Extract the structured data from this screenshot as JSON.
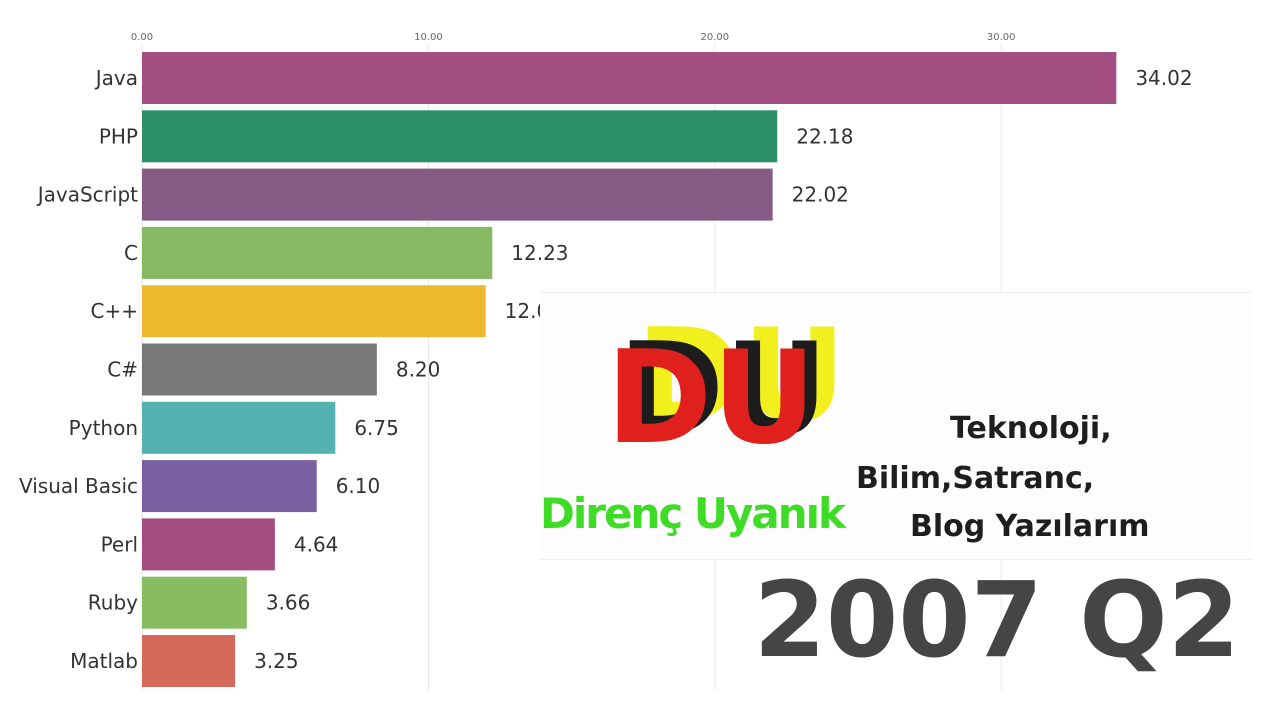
{
  "chart_data": {
    "type": "bar",
    "orientation": "horizontal",
    "categories": [
      "Java",
      "PHP",
      "JavaScript",
      "C",
      "C++",
      "C#",
      "Python",
      "Visual Basic",
      "Perl",
      "Ruby",
      "Matlab"
    ],
    "values": [
      34.02,
      22.18,
      22.02,
      12.23,
      12.0,
      8.2,
      6.75,
      6.1,
      4.64,
      3.66,
      3.25
    ],
    "value_labels": [
      "34.02",
      "22.18",
      "22.02",
      "12.23",
      "12.0",
      "8.20",
      "6.75",
      "6.10",
      "4.64",
      "3.66",
      "3.25"
    ],
    "colors": [
      "#a34f81",
      "#2d8f68",
      "#865a85",
      "#86ba62",
      "#efb92f",
      "#787878",
      "#54b3b0",
      "#7a5fa1",
      "#a54d80",
      "#87bd60",
      "#d5695a"
    ],
    "x_ticks": [
      0,
      10,
      20,
      30
    ],
    "x_tick_labels": [
      "0.00",
      "10.00",
      "20.00",
      "30.00"
    ],
    "xlim": [
      0,
      40
    ],
    "grid": true,
    "axis_position": "top"
  },
  "period": "2007 Q2",
  "logo": {
    "letters": "DU",
    "name": "Direnç Uyanık",
    "tagline": [
      "Teknoloji,",
      "Bilim,Satranc,",
      "Blog Yazılarım"
    ],
    "colors": {
      "red": "#e0201d",
      "yellow": "#f2ef1e",
      "dark": "#1c1c1c",
      "green": "#3fdc27"
    }
  }
}
